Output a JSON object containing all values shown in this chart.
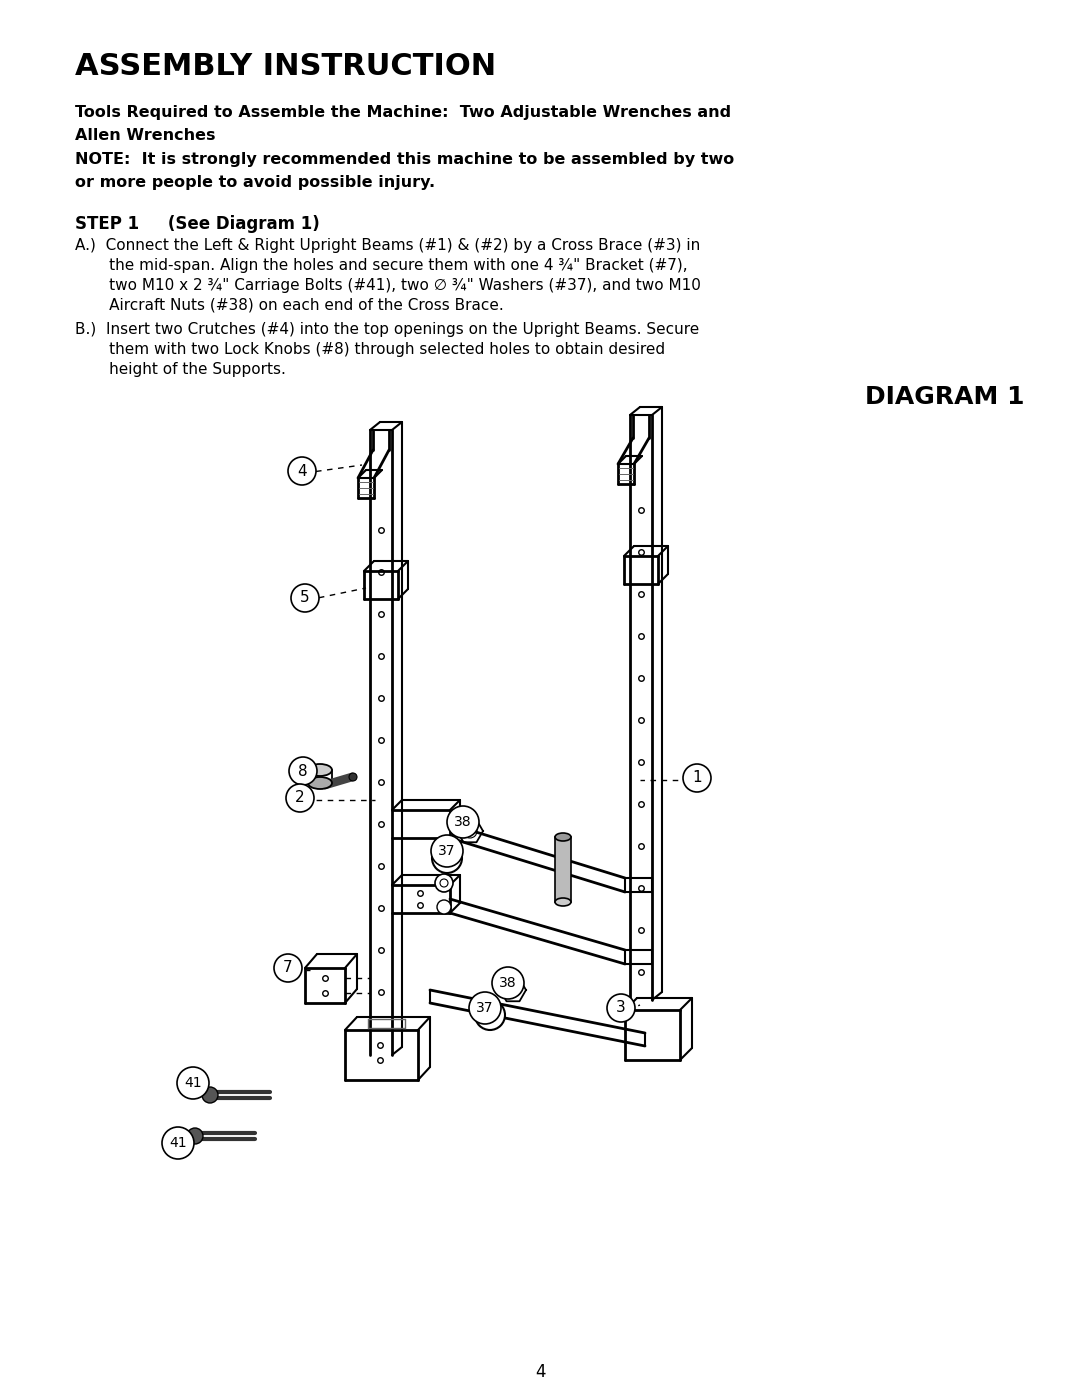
{
  "title": "ASSEMBLY INSTRUCTION",
  "bg_color": "#ffffff",
  "text_color": "#000000",
  "tools_line1": "Tools Required to Assemble the Machine:  Two Adjustable Wrenches and",
  "tools_line2": "Allen Wrenches",
  "note_line1": "NOTE:  It is strongly recommended this machine to be assembled by two",
  "note_line2": "or more people to avoid possible injury.",
  "step_header": "STEP 1     (See Diagram 1)",
  "step_a_lines": [
    "A.)  Connect the Left & Right Upright Beams (#1) & (#2) by a Cross Brace (#3) in",
    "       the mid-span. Align the holes and secure them with one 4 ¾\" Bracket (#7),",
    "       two M10 x 2 ¾\" Carriage Bolts (#41), two ∅ ¾\" Washers (#37), and two M10",
    "       Aircraft Nuts (#38) on each end of the Cross Brace."
  ],
  "step_b_lines": [
    "B.)  Insert two Crutches (#4) into the top openings on the Upright Beams. Secure",
    "       them with two Lock Knobs (#8) through selected holes to obtain desired",
    "       height of the Supports."
  ],
  "diagram_label": "DIAGRAM 1",
  "page_number": "4"
}
